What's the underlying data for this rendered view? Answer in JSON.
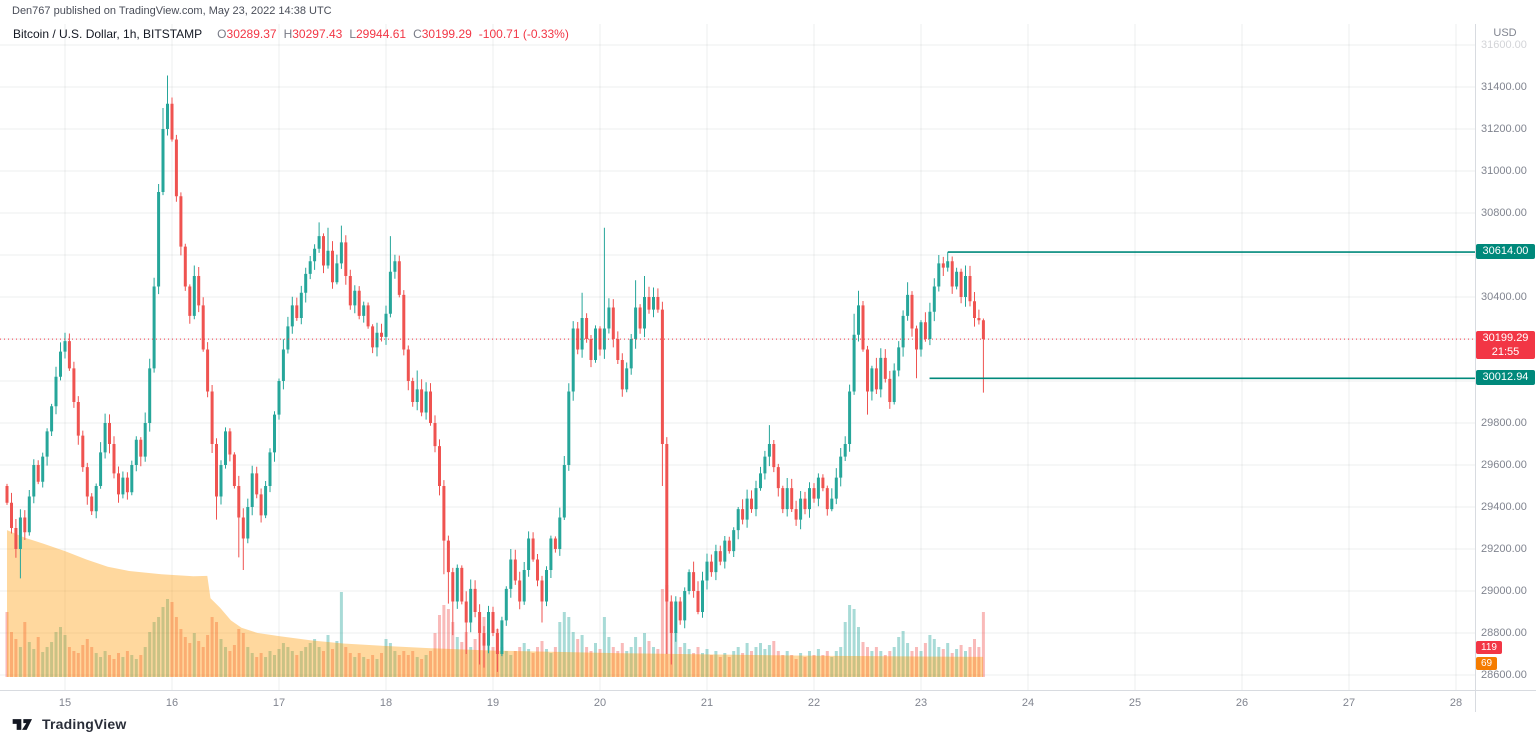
{
  "header": {
    "publisher": "Den767 published on TradingView.com, May 23, 2022 14:38 UTC"
  },
  "legend": {
    "symbol": "Bitcoin / U.S. Dollar, 1h, BITSTAMP",
    "open_label": "O",
    "open": "30289.37",
    "high_label": "H",
    "high": "30297.43",
    "low_label": "L",
    "low": "29944.61",
    "close_label": "C",
    "close": "30199.29",
    "change": "-100.71 (-0.33%)"
  },
  "axis": {
    "currency": "USD",
    "faded_top_tick": "31600.00",
    "price_ticks": [
      "31400.00",
      "31200.00",
      "31000.00",
      "30800.00",
      "30600.00",
      "30400.00",
      "30200.00",
      "30000.00",
      "29800.00",
      "29600.00",
      "29400.00",
      "29200.00",
      "29000.00",
      "28800.00",
      "28600.00"
    ],
    "time_ticks": [
      {
        "label": "15",
        "day": 15
      },
      {
        "label": "16",
        "day": 16
      },
      {
        "label": "17",
        "day": 17
      },
      {
        "label": "18",
        "day": 18
      },
      {
        "label": "19",
        "day": 19
      },
      {
        "label": "20",
        "day": 20
      },
      {
        "label": "21",
        "day": 21
      },
      {
        "label": "22",
        "day": 22
      },
      {
        "label": "23",
        "day": 23
      },
      {
        "label": "24",
        "day": 24
      },
      {
        "label": "25",
        "day": 25
      },
      {
        "label": "26",
        "day": 26
      },
      {
        "label": "27",
        "day": 27
      },
      {
        "label": "28",
        "day": 28
      }
    ]
  },
  "levels": {
    "upper": {
      "label": "30614.00",
      "price": 30614.0,
      "start_day": 23.25
    },
    "lower": {
      "label": "30012.94",
      "price": 30012.94,
      "start_day": 23.08
    },
    "last": {
      "label": "30199.29",
      "countdown": "21:55",
      "price": 30199.29
    }
  },
  "volume_badges": {
    "current": {
      "label": "119",
      "color": "#f23645"
    },
    "ma": {
      "label": "69",
      "color": "#f57c00"
    }
  },
  "footer": {
    "brand": "TradingView"
  },
  "colors": {
    "up": "#26a69a",
    "down": "#ef5350",
    "accent_teal": "#00897b",
    "last_price": "#f23645",
    "orange_area": "#ff9800",
    "grid": "rgba(42,46,57,0.08)"
  },
  "chart_data": {
    "type": "candlestick",
    "title": "Bitcoin / U.S. Dollar",
    "exchange": "BITSTAMP",
    "interval": "1h",
    "currency": "USD",
    "first_candle_time": "2022-05-14 11:00 UTC",
    "last_candle_time": "2022-05-23 14:00 UTC",
    "price_axis_range": [
      28529,
      31700
    ],
    "time_axis_days_visible": [
      14.4,
      28.6
    ],
    "open_first": 29500,
    "closes": [
      29420,
      29300,
      29200,
      29350,
      29280,
      29450,
      29600,
      29520,
      29640,
      29760,
      29880,
      30020,
      30140,
      30190,
      30060,
      29900,
      29740,
      29590,
      29450,
      29380,
      29500,
      29660,
      29800,
      29700,
      29560,
      29460,
      29540,
      29470,
      29600,
      29720,
      29640,
      29800,
      30060,
      30450,
      30900,
      31200,
      31320,
      31150,
      30880,
      30640,
      30450,
      30310,
      30500,
      30360,
      30150,
      29950,
      29700,
      29450,
      29600,
      29760,
      29650,
      29500,
      29350,
      29250,
      29400,
      29560,
      29460,
      29360,
      29500,
      29660,
      29840,
      30000,
      30150,
      30260,
      30360,
      30300,
      30420,
      30510,
      30570,
      30630,
      30690,
      30550,
      30620,
      30470,
      30560,
      30660,
      30500,
      30360,
      30430,
      30310,
      30360,
      30260,
      30160,
      30230,
      30210,
      30320,
      30520,
      30570,
      30410,
      30150,
      30000,
      29900,
      29960,
      29850,
      29950,
      29800,
      29690,
      29500,
      29240,
      29090,
      28950,
      29110,
      28950,
      28850,
      29010,
      28900,
      28800,
      28740,
      28900,
      28800,
      28700,
      28860,
      29010,
      29150,
      29050,
      28950,
      29100,
      29250,
      29150,
      29050,
      28950,
      29100,
      29250,
      29200,
      29350,
      29600,
      29950,
      30250,
      30150,
      30300,
      30200,
      30100,
      30250,
      30150,
      30250,
      30350,
      30200,
      30100,
      29960,
      30060,
      30200,
      30350,
      30250,
      30400,
      30340,
      30400,
      30340,
      29700,
      28950,
      28800,
      28950,
      28860,
      29000,
      29090,
      29000,
      28900,
      29050,
      29140,
      29090,
      29190,
      29140,
      29240,
      29190,
      29290,
      29390,
      29340,
      29440,
      29390,
      29490,
      29560,
      29640,
      29700,
      29590,
      29490,
      29390,
      29490,
      29390,
      29340,
      29440,
      29390,
      29490,
      29440,
      29540,
      29490,
      29390,
      29440,
      29540,
      29640,
      29700,
      29950,
      30220,
      30360,
      30150,
      29950,
      30060,
      29960,
      30110,
      30010,
      29900,
      30050,
      30160,
      30310,
      30410,
      30250,
      30150,
      30280,
      30200,
      30330,
      30450,
      30560,
      30540,
      30570,
      30450,
      30520,
      30400,
      30500,
      30380,
      30300,
      30289,
      30199.29
    ],
    "high_overrides": {
      "13": 30230,
      "35": 31300,
      "36": 31455,
      "37": 31350,
      "42": 30550,
      "70": 30755,
      "72": 30730,
      "75": 30740,
      "86": 30690,
      "92": 30050,
      "129": 30420,
      "134": 30730,
      "141": 30480,
      "143": 30500,
      "171": 29790,
      "190": 30320,
      "191": 30430,
      "202": 30470,
      "209": 30600,
      "211": 30614,
      "215": 30550
    },
    "low_overrides": {
      "3": 29060,
      "47": 29340,
      "52": 29160,
      "53": 29100,
      "98": 29080,
      "99": 28940,
      "100": 28790,
      "103": 28700,
      "106": 28650,
      "107": 28635,
      "110": 28615,
      "120": 28850,
      "147": 29500,
      "148": 28700,
      "149": 28650,
      "193": 29840,
      "204": 30012.94
    },
    "last_candle": {
      "open": 30289.37,
      "high": 30297.43,
      "low": 29944.61,
      "close": 30199.29
    },
    "volume_relative": [
      65,
      45,
      38,
      30,
      55,
      35,
      28,
      40,
      25,
      30,
      35,
      45,
      50,
      42,
      30,
      26,
      24,
      32,
      38,
      30,
      24,
      20,
      26,
      22,
      18,
      24,
      20,
      26,
      22,
      18,
      22,
      30,
      45,
      55,
      60,
      70,
      78,
      75,
      60,
      48,
      40,
      34,
      44,
      36,
      30,
      42,
      60,
      55,
      38,
      30,
      26,
      32,
      48,
      44,
      30,
      24,
      20,
      24,
      20,
      26,
      22,
      28,
      34,
      30,
      26,
      22,
      26,
      30,
      34,
      38,
      30,
      26,
      42,
      28,
      36,
      85,
      30,
      24,
      20,
      24,
      20,
      18,
      22,
      18,
      24,
      38,
      34,
      26,
      22,
      26,
      22,
      26,
      20,
      18,
      22,
      26,
      44,
      62,
      72,
      68,
      55,
      40,
      35,
      45,
      30,
      38,
      55,
      60,
      35,
      30,
      48,
      30,
      26,
      22,
      26,
      30,
      34,
      28,
      24,
      30,
      36,
      28,
      24,
      30,
      55,
      65,
      60,
      45,
      38,
      42,
      30,
      26,
      34,
      28,
      60,
      40,
      30,
      26,
      34,
      26,
      30,
      40,
      30,
      44,
      36,
      30,
      28,
      88,
      92,
      70,
      45,
      30,
      34,
      28,
      24,
      30,
      24,
      28,
      22,
      26,
      20,
      24,
      20,
      26,
      30,
      24,
      34,
      26,
      30,
      34,
      28,
      32,
      36,
      26,
      22,
      26,
      22,
      18,
      24,
      20,
      26,
      22,
      28,
      22,
      26,
      20,
      26,
      30,
      55,
      72,
      68,
      50,
      35,
      30,
      26,
      30,
      26,
      22,
      26,
      30,
      40,
      46,
      34,
      26,
      30,
      26,
      34,
      42,
      38,
      30,
      28,
      34,
      24,
      28,
      32,
      26,
      30,
      38,
      30,
      65
    ],
    "orange_area_points": [
      [
        14.458,
        29290
      ],
      [
        14.62,
        29255
      ],
      [
        14.8,
        29225
      ],
      [
        15.0,
        29190
      ],
      [
        15.2,
        29150
      ],
      [
        15.4,
        29115
      ],
      [
        15.6,
        29095
      ],
      [
        15.9,
        29080
      ],
      [
        16.2,
        29070
      ],
      [
        16.33,
        29072
      ],
      [
        16.36,
        28965
      ],
      [
        16.45,
        28920
      ],
      [
        16.55,
        28860
      ],
      [
        16.65,
        28825
      ],
      [
        16.8,
        28800
      ],
      [
        17.0,
        28785
      ],
      [
        17.3,
        28765
      ],
      [
        17.6,
        28750
      ],
      [
        18.0,
        28738
      ],
      [
        18.4,
        28728
      ],
      [
        19.0,
        28716
      ],
      [
        19.6,
        28710
      ],
      [
        20.2,
        28704
      ],
      [
        21.0,
        28698
      ],
      [
        22.0,
        28692
      ],
      [
        23.0,
        28688
      ],
      [
        23.58,
        28686
      ]
    ]
  }
}
